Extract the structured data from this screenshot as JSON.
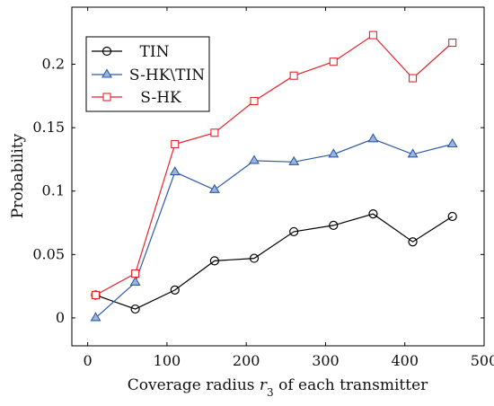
{
  "chart_data": {
    "type": "line",
    "xlabel": "Coverage radius r3 of each transmitter",
    "xlabel_parts": {
      "prefix": "Coverage radius ",
      "var": "r",
      "sub": "3",
      "suffix": " of each transmitter"
    },
    "ylabel": "Probability",
    "xlim": [
      -20,
      500
    ],
    "ylim": [
      -0.022,
      0.245
    ],
    "xticks": [
      0,
      100,
      200,
      300,
      400,
      500
    ],
    "yticks": [
      0,
      0.05,
      0.1,
      0.15,
      0.2
    ],
    "xtick_labels": [
      "0",
      "100",
      "200",
      "300",
      "400",
      "500"
    ],
    "ytick_labels": [
      "0",
      "0.05",
      "0.1",
      "0.15",
      "0.2"
    ],
    "grid": false,
    "legend_position": "top-left",
    "x": [
      10,
      60,
      110,
      160,
      210,
      260,
      310,
      360,
      410,
      460
    ],
    "series": [
      {
        "name": "TIN",
        "marker": "circle",
        "color": "#000000",
        "values": [
          0.018,
          0.007,
          0.022,
          0.045,
          0.047,
          0.068,
          0.073,
          0.082,
          0.06,
          0.08
        ]
      },
      {
        "name": "S-HK\\TIN",
        "marker": "triangle",
        "color": "#2e5aa7",
        "values": [
          0.0,
          0.028,
          0.115,
          0.101,
          0.124,
          0.123,
          0.129,
          0.141,
          0.129,
          0.137
        ]
      },
      {
        "name": "S-HK",
        "marker": "square",
        "color": "#e8232a",
        "values": [
          0.018,
          0.035,
          0.137,
          0.146,
          0.171,
          0.191,
          0.202,
          0.223,
          0.189,
          0.217
        ]
      }
    ]
  }
}
